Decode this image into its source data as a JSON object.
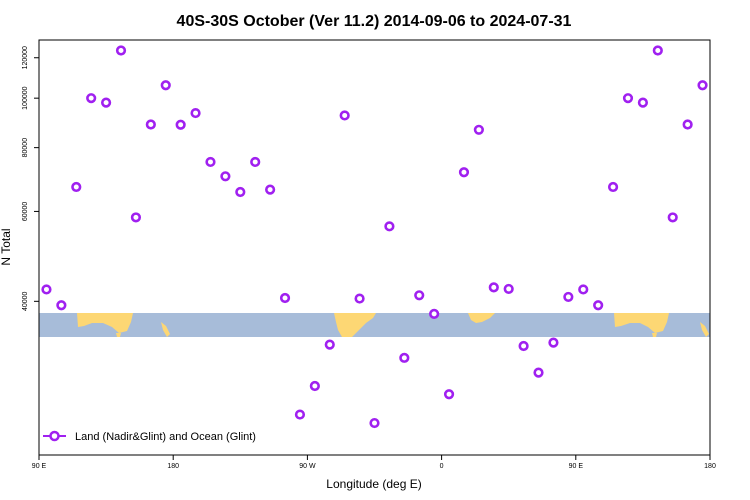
{
  "chart_data": {
    "type": "scatter",
    "title": "40S-30S October (Ver 11.2)   2014-09-06 to 2024-07-31",
    "xlabel": "Longitude (deg E)",
    "ylabel": "N Total",
    "x_ticks": [
      {
        "value": 90,
        "label": "90 E"
      },
      {
        "value": 180,
        "label": "180"
      },
      {
        "value": 270,
        "label": "90 W"
      },
      {
        "value": 360,
        "label": "0"
      },
      {
        "value": 450,
        "label": "90 E"
      },
      {
        "value": 540,
        "label": "180"
      }
    ],
    "y_ticks": [
      {
        "value": 40000,
        "label": "40000"
      },
      {
        "value": 60000,
        "label": "60000"
      },
      {
        "value": 80000,
        "label": "80000"
      },
      {
        "value": 100000,
        "label": "100000"
      },
      {
        "value": 120000,
        "label": "120000"
      }
    ],
    "xlim": [
      90,
      540
    ],
    "ylim": [
      20000,
      130000
    ],
    "y_scale": "log",
    "grid": false,
    "legend": {
      "position": "bottom-left",
      "entries": [
        {
          "label": "Land (Nadir&Glint) and Ocean (Glint)",
          "color": "#a020f0"
        }
      ]
    },
    "series": [
      {
        "name": "Land (Nadir&Glint) and Ocean (Glint)",
        "color": "#a020f0",
        "marker": "open-circle",
        "x": [
          95,
          105,
          115,
          125,
          135,
          145,
          155,
          165,
          175,
          185,
          195,
          205,
          215,
          225,
          235,
          245,
          255,
          265,
          275,
          285,
          295,
          305,
          315,
          325,
          335,
          345,
          355,
          365,
          375,
          385,
          395,
          405,
          415,
          425,
          435,
          445,
          455,
          465,
          475,
          485,
          495,
          505,
          515,
          525,
          535
        ],
        "y": [
          42200,
          39300,
          67000,
          100000,
          98000,
          124000,
          58400,
          88800,
          106000,
          88700,
          93500,
          75000,
          70300,
          65500,
          75000,
          66200,
          40600,
          24000,
          27300,
          32900,
          92500,
          40500,
          23100,
          56100,
          31000,
          41100,
          37800,
          26300,
          71600,
          86700,
          42600,
          42300,
          32700,
          29000,
          33200,
          40800,
          42200,
          39300,
          67000,
          100000,
          98000,
          124000,
          58400,
          88800,
          106000
        ]
      }
    ],
    "map_background": {
      "ocean_color": "#a7bcd9",
      "land_color": "#fdd774"
    }
  }
}
